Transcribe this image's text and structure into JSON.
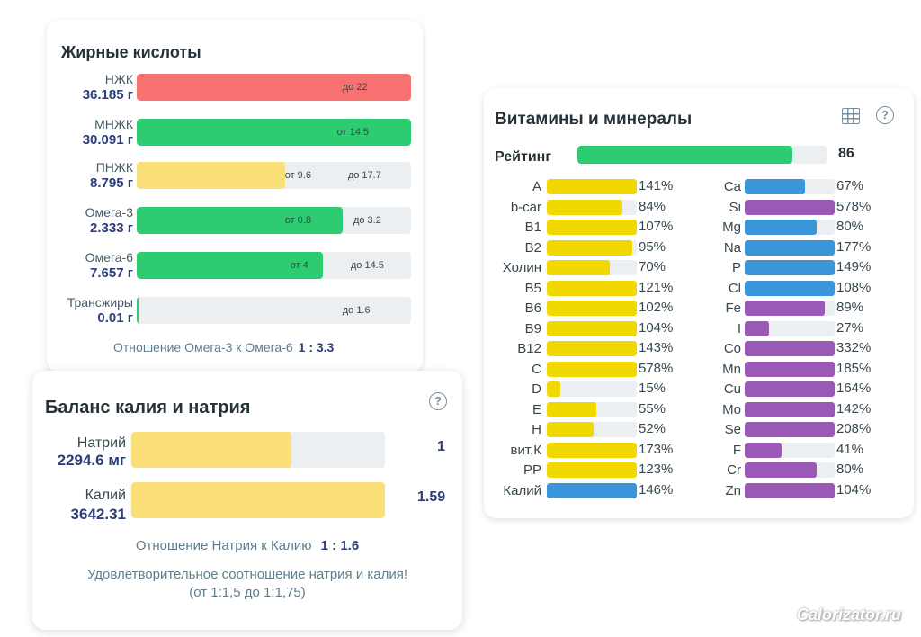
{
  "fatty_acids": {
    "title": "Жирные кислоты",
    "rows": [
      {
        "name": "НЖК",
        "value": "36.185 г",
        "fill": 1.0,
        "color": "#f87171",
        "labels": [
          {
            "text": "до 22",
            "pos": 0.75
          }
        ]
      },
      {
        "name": "МНЖК",
        "value": "30.091 г",
        "fill": 1.0,
        "color": "#2ecc71",
        "labels": [
          {
            "text": "от 14.5",
            "pos": 0.73
          }
        ]
      },
      {
        "name": "ПНЖК",
        "value": "8.795 г",
        "fill": 0.54,
        "color": "#fbe07a",
        "labels": [
          {
            "text": "от 9.6",
            "pos": 0.54
          },
          {
            "text": "до 17.7",
            "pos": 0.77
          }
        ]
      },
      {
        "name": "Омега-3",
        "value": "2.333 г",
        "fill": 0.75,
        "color": "#2ecc71",
        "labels": [
          {
            "text": "от 0.8",
            "pos": 0.54
          },
          {
            "text": "до 3.2",
            "pos": 0.79
          }
        ]
      },
      {
        "name": "Омега-6",
        "value": "7.657 г",
        "fill": 0.68,
        "color": "#2ecc71",
        "labels": [
          {
            "text": "от 4",
            "pos": 0.56
          },
          {
            "text": "до 14.5",
            "pos": 0.78
          }
        ]
      },
      {
        "name": "Трансжиры",
        "value": "0.01 г",
        "fill": 0.005,
        "color": "#2ecc71",
        "labels": [
          {
            "text": "до 1.6",
            "pos": 0.75
          }
        ]
      }
    ],
    "ratio_label": "Отношение Омега-3 к Омега-6",
    "ratio_value": "1 : 3.3"
  },
  "balance": {
    "title": "Баланс калия и натрия",
    "sodium": {
      "name": "Натрий",
      "value": "2294.6 мг",
      "fill": 0.63,
      "number": "1"
    },
    "potassium": {
      "name": "Калий",
      "value": "3642.31",
      "fill": 1.0,
      "number": "1.59"
    },
    "ratio_label": "Отношение Натрия к Калию",
    "ratio_value": "1 : 1.6",
    "message_line1": "Удовлетворительное соотношение натрия и калия!",
    "message_line2": "(от 1:1,5 до 1:1,75)",
    "help": "?"
  },
  "vitamins": {
    "title": "Витамины и минералы",
    "help": "?",
    "rating_label": "Рейтинг",
    "rating_value": "86",
    "rating_fill": 0.86,
    "left": [
      {
        "name": "A",
        "pct": "141%",
        "fill": 1.0,
        "color": "#f0d800"
      },
      {
        "name": "b-car",
        "pct": "84%",
        "fill": 0.84,
        "color": "#f0d800"
      },
      {
        "name": "B1",
        "pct": "107%",
        "fill": 1.0,
        "color": "#f0d800"
      },
      {
        "name": "B2",
        "pct": "95%",
        "fill": 0.95,
        "color": "#f0d800"
      },
      {
        "name": "Холин",
        "pct": "70%",
        "fill": 0.7,
        "color": "#f0d800"
      },
      {
        "name": "B5",
        "pct": "121%",
        "fill": 1.0,
        "color": "#f0d800"
      },
      {
        "name": "B6",
        "pct": "102%",
        "fill": 1.0,
        "color": "#f0d800"
      },
      {
        "name": "B9",
        "pct": "104%",
        "fill": 1.0,
        "color": "#f0d800"
      },
      {
        "name": "B12",
        "pct": "143%",
        "fill": 1.0,
        "color": "#f0d800"
      },
      {
        "name": "C",
        "pct": "578%",
        "fill": 1.0,
        "color": "#f0d800"
      },
      {
        "name": "D",
        "pct": "15%",
        "fill": 0.15,
        "color": "#f0d800"
      },
      {
        "name": "E",
        "pct": "55%",
        "fill": 0.55,
        "color": "#f0d800"
      },
      {
        "name": "H",
        "pct": "52%",
        "fill": 0.52,
        "color": "#f0d800"
      },
      {
        "name": "вит.К",
        "pct": "173%",
        "fill": 1.0,
        "color": "#f0d800"
      },
      {
        "name": "PP",
        "pct": "123%",
        "fill": 1.0,
        "color": "#f0d800"
      },
      {
        "name": "Калий",
        "pct": "146%",
        "fill": 1.0,
        "color": "#3b95d9"
      }
    ],
    "right": [
      {
        "name": "Ca",
        "pct": "67%",
        "fill": 0.67,
        "color": "#3b95d9"
      },
      {
        "name": "Si",
        "pct": "578%",
        "fill": 1.0,
        "color": "#9b59b6"
      },
      {
        "name": "Mg",
        "pct": "80%",
        "fill": 0.8,
        "color": "#3b95d9"
      },
      {
        "name": "Na",
        "pct": "177%",
        "fill": 1.0,
        "color": "#3b95d9"
      },
      {
        "name": "P",
        "pct": "149%",
        "fill": 1.0,
        "color": "#3b95d9"
      },
      {
        "name": "Cl",
        "pct": "108%",
        "fill": 1.0,
        "color": "#3b95d9"
      },
      {
        "name": "Fe",
        "pct": "89%",
        "fill": 0.89,
        "color": "#9b59b6"
      },
      {
        "name": "I",
        "pct": "27%",
        "fill": 0.27,
        "color": "#9b59b6"
      },
      {
        "name": "Co",
        "pct": "332%",
        "fill": 1.0,
        "color": "#9b59b6"
      },
      {
        "name": "Mn",
        "pct": "185%",
        "fill": 1.0,
        "color": "#9b59b6"
      },
      {
        "name": "Cu",
        "pct": "164%",
        "fill": 1.0,
        "color": "#9b59b6"
      },
      {
        "name": "Mo",
        "pct": "142%",
        "fill": 1.0,
        "color": "#9b59b6"
      },
      {
        "name": "Se",
        "pct": "208%",
        "fill": 1.0,
        "color": "#9b59b6"
      },
      {
        "name": "F",
        "pct": "41%",
        "fill": 0.41,
        "color": "#9b59b6"
      },
      {
        "name": "Cr",
        "pct": "80%",
        "fill": 0.8,
        "color": "#9b59b6"
      },
      {
        "name": "Zn",
        "pct": "104%",
        "fill": 1.0,
        "color": "#9b59b6"
      }
    ]
  },
  "watermark": "Calorizator.ru"
}
